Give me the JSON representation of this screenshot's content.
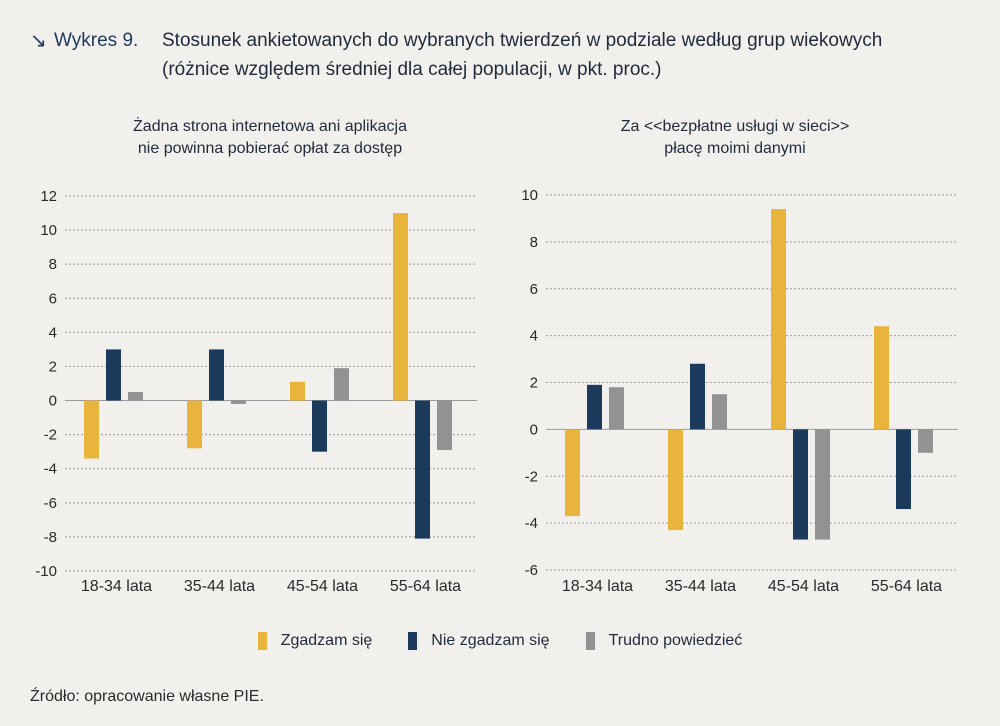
{
  "header": {
    "label": "Wykres 9.",
    "title_line1": "Stosunek ankietowanych do wybranych twierdzeń w podziale według grup wiekowych",
    "title_line2": "(różnice względem średniej dla całej populacji, w pkt. proc.)"
  },
  "legend": [
    {
      "name": "Zgadzam się",
      "color": "#e8b43c"
    },
    {
      "name": "Nie zgadzam się",
      "color": "#1c3a5c"
    },
    {
      "name": "Trudno powiedzieć",
      "color": "#929292"
    }
  ],
  "source": "Źródło: opracowanie własne PIE.",
  "chart_data": [
    {
      "type": "bar",
      "title_line1": "Żadna strona internetowa ani aplikacja",
      "title_line2": "nie powinna pobierać opłat za dostęp",
      "categories": [
        "18-34 lata",
        "35-44 lata",
        "45-54 lata",
        "55-64 lata"
      ],
      "yticks": [
        12,
        10,
        8,
        6,
        4,
        2,
        0,
        -2,
        -4,
        -6,
        -8,
        -10
      ],
      "ylim": [
        -10,
        12
      ],
      "series": [
        {
          "name": "Zgadzam się",
          "values": [
            -3.4,
            -2.8,
            1.1,
            11.0
          ]
        },
        {
          "name": "Nie zgadzam się",
          "values": [
            3.0,
            3.0,
            -3.0,
            -8.1
          ]
        },
        {
          "name": "Trudno powiedzieć",
          "values": [
            0.5,
            -0.2,
            1.9,
            -2.9
          ]
        }
      ]
    },
    {
      "type": "bar",
      "title_line1": "Za <<bezpłatne usługi w sieci>>",
      "title_line2": "płacę moimi danymi",
      "categories": [
        "18-34 lata",
        "35-44 lata",
        "45-54 lata",
        "55-64 lata"
      ],
      "yticks": [
        10,
        8,
        6,
        4,
        2,
        0,
        -2,
        -4,
        -6
      ],
      "ylim": [
        -6,
        10
      ],
      "series": [
        {
          "name": "Zgadzam się",
          "values": [
            -3.7,
            -4.3,
            9.4,
            4.4
          ]
        },
        {
          "name": "Nie zgadzam się",
          "values": [
            1.9,
            2.8,
            -4.7,
            -3.4
          ]
        },
        {
          "name": "Trudno powiedzieć",
          "values": [
            1.8,
            1.5,
            -4.7,
            -1.0
          ]
        }
      ]
    }
  ]
}
